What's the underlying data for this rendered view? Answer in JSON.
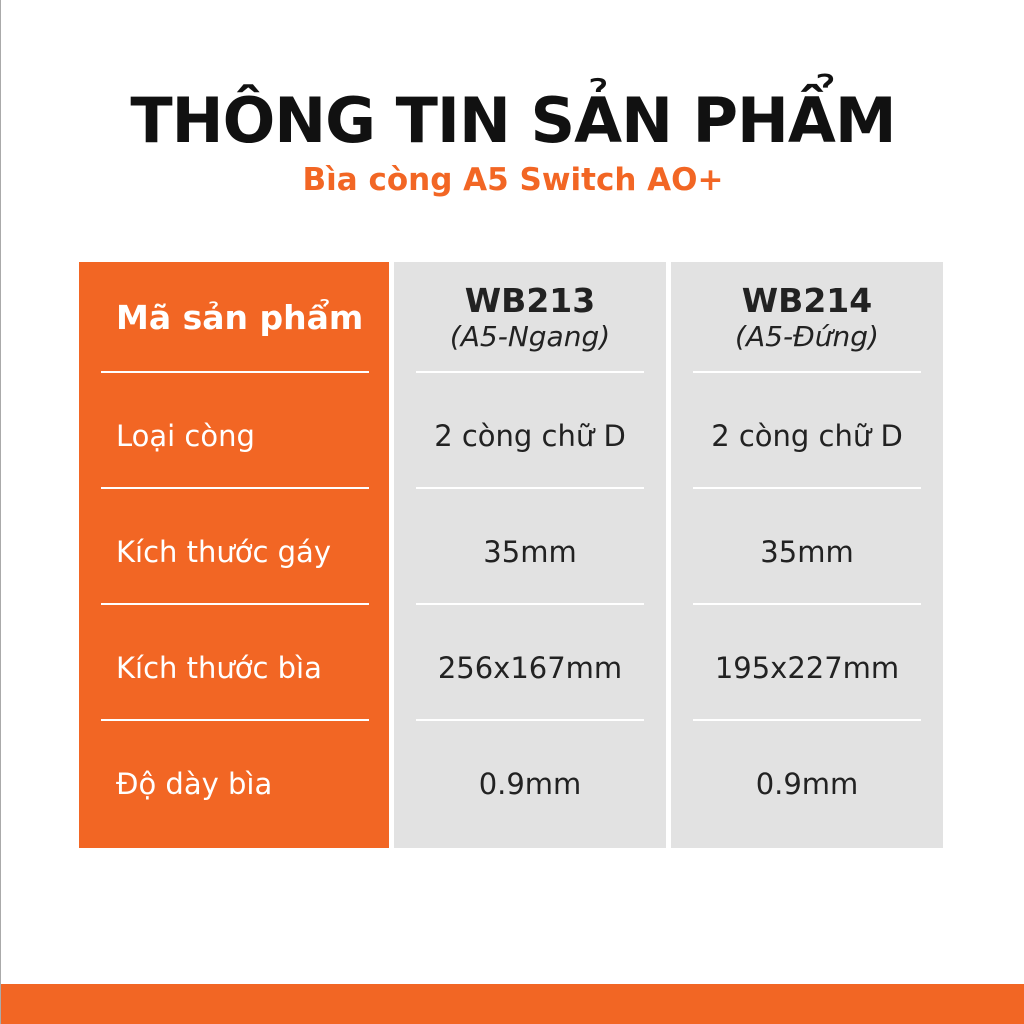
{
  "header": {
    "title": "THÔNG TIN SẢN PHẨM",
    "subtitle": "Bìa còng A5 Switch AO+"
  },
  "table": {
    "row_labels": [
      "Mã sản phẩm",
      "Loại còng",
      "Kích thước gáy",
      "Kích thước bìa",
      "Độ dày bìa"
    ],
    "products": [
      {
        "code": "WB213",
        "variant": "(A5-Ngang)",
        "values": [
          "2 còng chữ D",
          "35mm",
          "256x167mm",
          "0.9mm"
        ]
      },
      {
        "code": "WB214",
        "variant": "(A5-Đứng)",
        "values": [
          "2 còng chữ D",
          "35mm",
          "195x227mm",
          "0.9mm"
        ]
      }
    ]
  },
  "colors": {
    "accent": "#f26624",
    "cell_bg": "#e2e2e2"
  }
}
